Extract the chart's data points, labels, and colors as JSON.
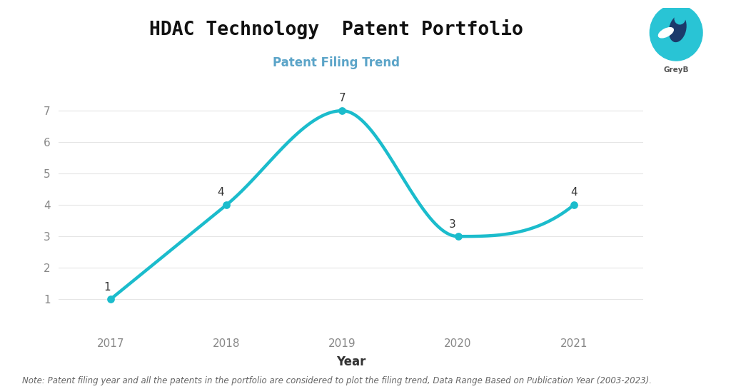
{
  "title": "HDAC Technology  Patent Portfolio",
  "subtitle": "Patent Filing Trend",
  "xlabel": "Year",
  "years": [
    2017,
    2018,
    2019,
    2020,
    2021
  ],
  "values": [
    1,
    4,
    7,
    3,
    4
  ],
  "line_color": "#1BBCCC",
  "marker_color": "#1BBCCC",
  "background_color": "#FFFFFF",
  "title_fontsize": 19,
  "subtitle_fontsize": 12,
  "xlabel_fontsize": 12,
  "annotation_fontsize": 11,
  "note_text": "Note: Patent filing year and all the patents in the portfolio are considered to plot the filing trend, Data Range Based on Publication Year (2003-2023).",
  "note_fontsize": 8.5,
  "ylim": [
    0,
    7.8
  ],
  "yticks": [
    1,
    2,
    3,
    4,
    5,
    6,
    7
  ],
  "grid_color": "#E5E5E5",
  "subtitle_color": "#5BA4C8",
  "tick_color": "#888888",
  "xlabel_color": "#333333",
  "annotation_color": "#333333",
  "note_color": "#666666"
}
